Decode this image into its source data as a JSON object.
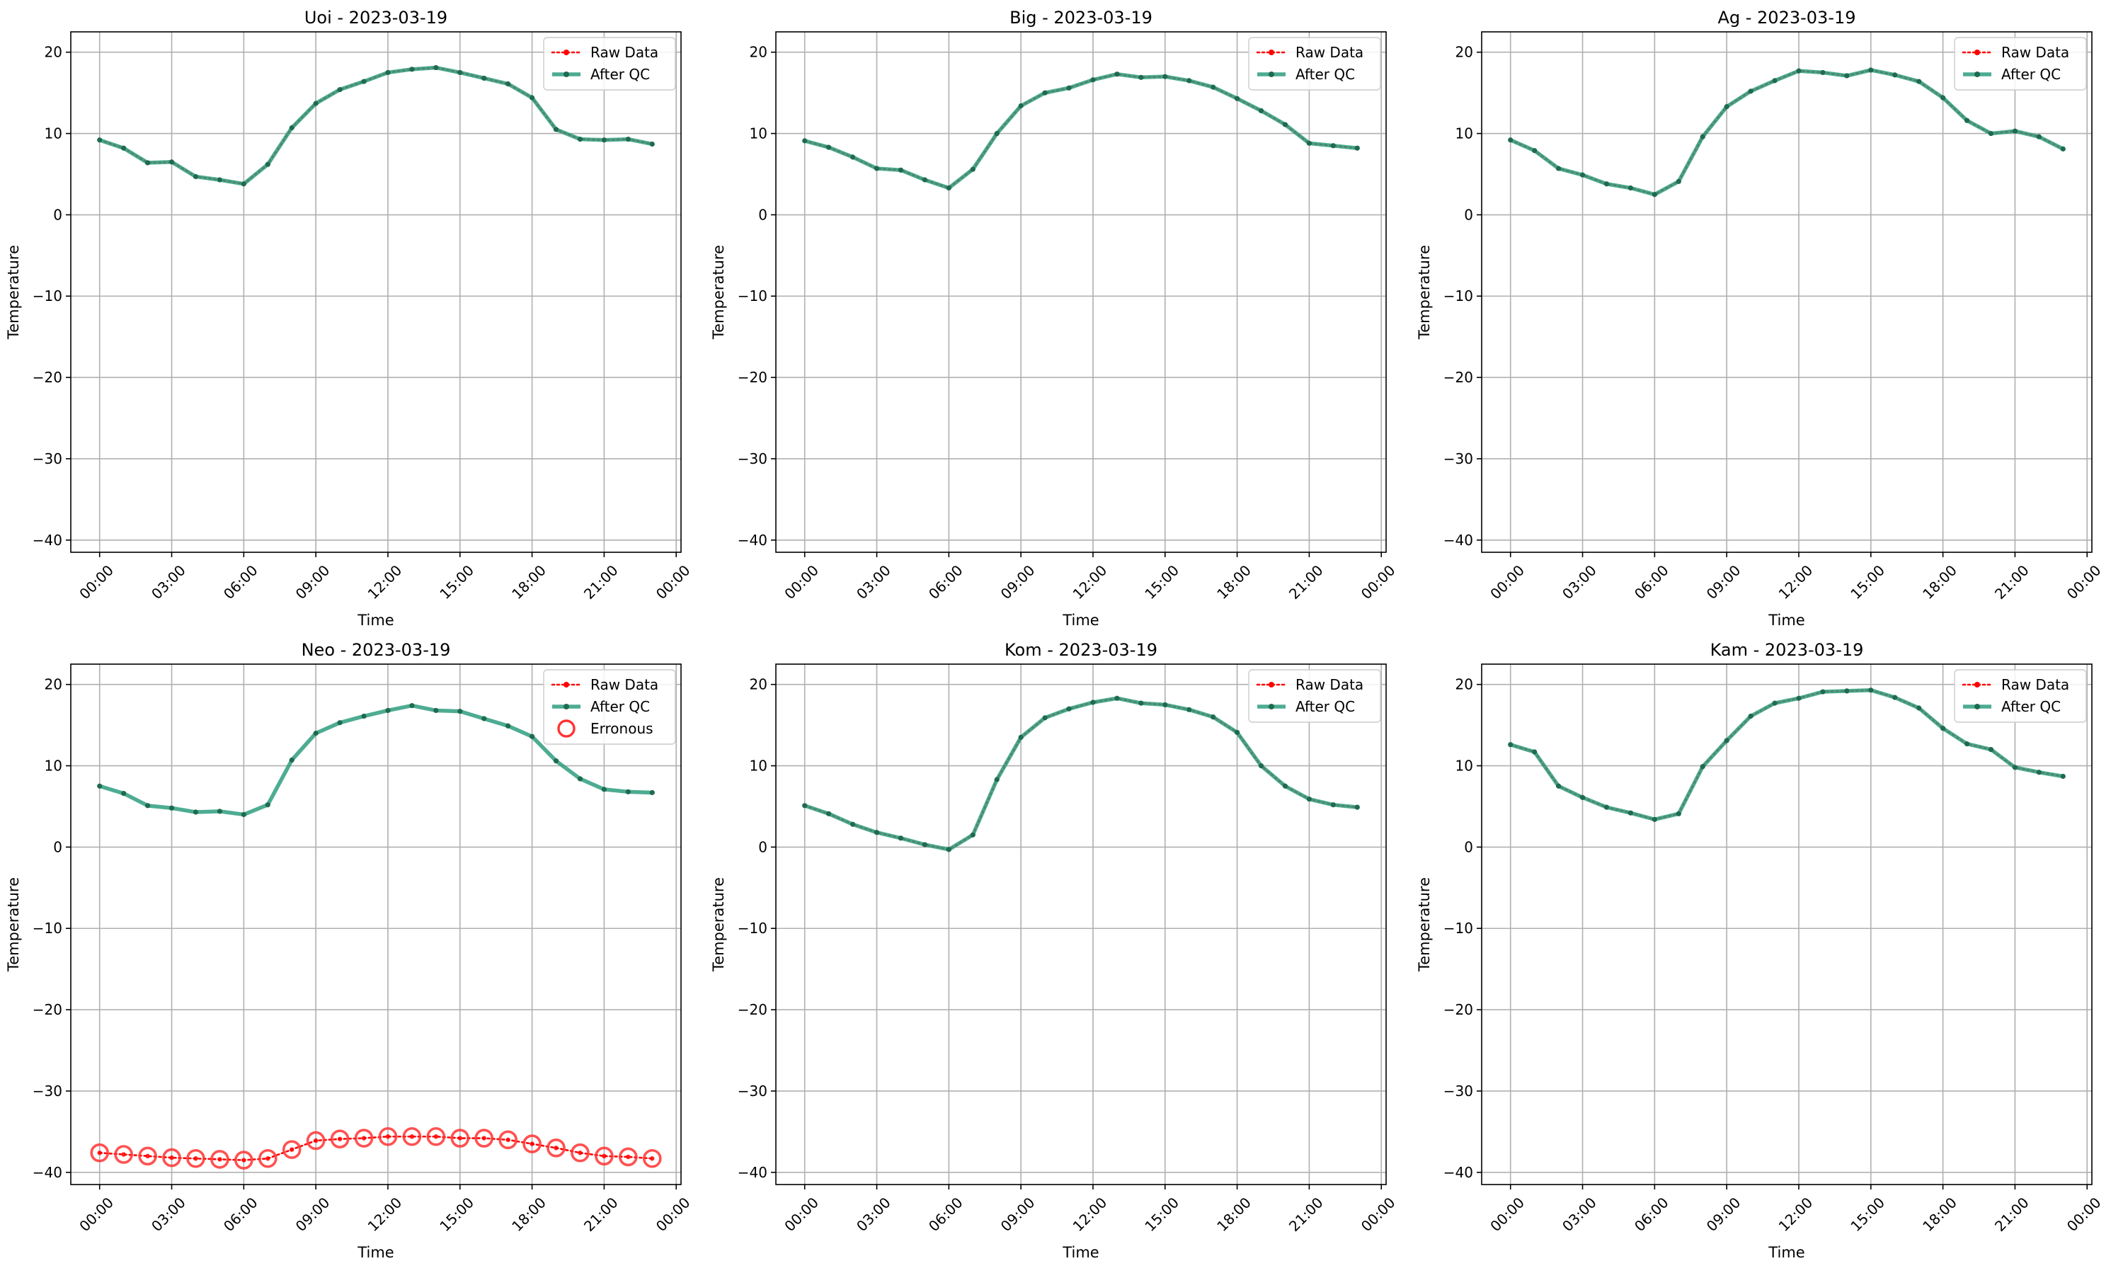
{
  "colors": {
    "raw": "#ff0000",
    "after_qc": "#2e9e7f",
    "after_qc_marker": "#1f6b4f",
    "erroneous": "#ff3333",
    "grid": "#b0b0b0",
    "axis": "#000000"
  },
  "legend_labels": {
    "raw": "Raw Data",
    "after_qc": "After QC",
    "erroneous": "Erronous"
  },
  "chart_data": [
    {
      "type": "line",
      "title": "Uoi - 2023-03-19",
      "xlabel": "Time",
      "ylabel": "Temperature",
      "xlim": [
        -1.2,
        24.2
      ],
      "ylim": [
        -41.5,
        22.5
      ],
      "x_ticks": [
        0,
        3,
        6,
        9,
        12,
        15,
        18,
        21,
        24
      ],
      "x_tick_labels": [
        "00:00",
        "03:00",
        "06:00",
        "09:00",
        "12:00",
        "15:00",
        "18:00",
        "21:00",
        "00:00"
      ],
      "y_ticks": [
        -40,
        -30,
        -20,
        -10,
        0,
        10,
        20
      ],
      "y_tick_labels": [
        "−40",
        "−30",
        "−20",
        "−10",
        "0",
        "10",
        "20"
      ],
      "grid": true,
      "legend": "top-right",
      "x": [
        0,
        1,
        2,
        3,
        4,
        5,
        6,
        7,
        8,
        9,
        10,
        11,
        12,
        13,
        14,
        15,
        16,
        17,
        18,
        19,
        20,
        21,
        22,
        23
      ],
      "series": [
        {
          "name": "Raw Data",
          "values": [
            9.2,
            8.2,
            6.4,
            6.5,
            4.7,
            4.3,
            3.8,
            6.2,
            10.7,
            13.7,
            15.4,
            16.4,
            17.5,
            17.9,
            18.1,
            17.5,
            16.8,
            16.1,
            14.4,
            10.5,
            9.3,
            9.2,
            9.3,
            8.7
          ]
        },
        {
          "name": "After QC",
          "values": [
            9.2,
            8.2,
            6.4,
            6.5,
            4.7,
            4.3,
            3.8,
            6.2,
            10.7,
            13.7,
            15.4,
            16.4,
            17.5,
            17.9,
            18.1,
            17.5,
            16.8,
            16.1,
            14.4,
            10.5,
            9.3,
            9.2,
            9.3,
            8.7
          ]
        }
      ]
    },
    {
      "type": "line",
      "title": "Big - 2023-03-19",
      "xlabel": "Time",
      "ylabel": "Temperature",
      "xlim": [
        -1.2,
        24.2
      ],
      "ylim": [
        -41.5,
        22.5
      ],
      "x_ticks": [
        0,
        3,
        6,
        9,
        12,
        15,
        18,
        21,
        24
      ],
      "x_tick_labels": [
        "00:00",
        "03:00",
        "06:00",
        "09:00",
        "12:00",
        "15:00",
        "18:00",
        "21:00",
        "00:00"
      ],
      "y_ticks": [
        -40,
        -30,
        -20,
        -10,
        0,
        10,
        20
      ],
      "y_tick_labels": [
        "−40",
        "−30",
        "−20",
        "−10",
        "0",
        "10",
        "20"
      ],
      "grid": true,
      "legend": "top-right",
      "x": [
        0,
        1,
        2,
        3,
        4,
        5,
        6,
        7,
        8,
        9,
        10,
        11,
        12,
        13,
        14,
        15,
        16,
        17,
        18,
        19,
        20,
        21,
        22,
        23
      ],
      "series": [
        {
          "name": "Raw Data",
          "values": [
            9.1,
            8.3,
            7.1,
            5.7,
            5.5,
            4.3,
            3.3,
            5.6,
            10.0,
            13.4,
            15.0,
            15.6,
            16.6,
            17.3,
            16.9,
            17.0,
            16.5,
            15.7,
            14.3,
            12.8,
            11.1,
            8.8,
            8.5,
            8.2
          ]
        },
        {
          "name": "After QC",
          "values": [
            9.1,
            8.3,
            7.1,
            5.7,
            5.5,
            4.3,
            3.3,
            5.6,
            10.0,
            13.4,
            15.0,
            15.6,
            16.6,
            17.3,
            16.9,
            17.0,
            16.5,
            15.7,
            14.3,
            12.8,
            11.1,
            8.8,
            8.5,
            8.2
          ]
        }
      ]
    },
    {
      "type": "line",
      "title": "Ag - 2023-03-19",
      "xlabel": "Time",
      "ylabel": "Temperature",
      "xlim": [
        -1.2,
        24.2
      ],
      "ylim": [
        -41.5,
        22.5
      ],
      "x_ticks": [
        0,
        3,
        6,
        9,
        12,
        15,
        18,
        21,
        24
      ],
      "x_tick_labels": [
        "00:00",
        "03:00",
        "06:00",
        "09:00",
        "12:00",
        "15:00",
        "18:00",
        "21:00",
        "00:00"
      ],
      "y_ticks": [
        -40,
        -30,
        -20,
        -10,
        0,
        10,
        20
      ],
      "y_tick_labels": [
        "−40",
        "−30",
        "−20",
        "−10",
        "0",
        "10",
        "20"
      ],
      "grid": true,
      "legend": "top-right",
      "x": [
        0,
        1,
        2,
        3,
        4,
        5,
        6,
        7,
        8,
        9,
        10,
        11,
        12,
        13,
        14,
        15,
        16,
        17,
        18,
        19,
        20,
        21,
        22,
        23
      ],
      "series": [
        {
          "name": "Raw Data",
          "values": [
            9.2,
            7.9,
            5.7,
            4.9,
            3.8,
            3.3,
            2.5,
            4.1,
            9.6,
            13.3,
            15.2,
            16.5,
            17.7,
            17.5,
            17.1,
            17.8,
            17.2,
            16.4,
            14.4,
            11.6,
            10.0,
            10.3,
            9.6,
            8.1
          ]
        },
        {
          "name": "After QC",
          "values": [
            9.2,
            7.9,
            5.7,
            4.9,
            3.8,
            3.3,
            2.5,
            4.1,
            9.6,
            13.3,
            15.2,
            16.5,
            17.7,
            17.5,
            17.1,
            17.8,
            17.2,
            16.4,
            14.4,
            11.6,
            10.0,
            10.3,
            9.6,
            8.1
          ]
        }
      ]
    },
    {
      "type": "line",
      "title": "Neo - 2023-03-19",
      "xlabel": "Time",
      "ylabel": "Temperature",
      "xlim": [
        -1.2,
        24.2
      ],
      "ylim": [
        -41.5,
        22.5
      ],
      "x_ticks": [
        0,
        3,
        6,
        9,
        12,
        15,
        18,
        21,
        24
      ],
      "x_tick_labels": [
        "00:00",
        "03:00",
        "06:00",
        "09:00",
        "12:00",
        "15:00",
        "18:00",
        "21:00",
        "00:00"
      ],
      "y_ticks": [
        -40,
        -30,
        -20,
        -10,
        0,
        10,
        20
      ],
      "y_tick_labels": [
        "−40",
        "−30",
        "−20",
        "−10",
        "0",
        "10",
        "20"
      ],
      "grid": true,
      "legend": "top-right",
      "x": [
        0,
        1,
        2,
        3,
        4,
        5,
        6,
        7,
        8,
        9,
        10,
        11,
        12,
        13,
        14,
        15,
        16,
        17,
        18,
        19,
        20,
        21,
        22,
        23
      ],
      "series": [
        {
          "name": "Raw Data",
          "values": [
            -37.6,
            -37.8,
            -38.0,
            -38.2,
            -38.3,
            -38.4,
            -38.5,
            -38.3,
            -37.2,
            -36.1,
            -35.9,
            -35.8,
            -35.6,
            -35.6,
            -35.6,
            -35.8,
            -35.8,
            -36.0,
            -36.5,
            -37.0,
            -37.6,
            -38.0,
            -38.1,
            -38.3
          ]
        },
        {
          "name": "After QC",
          "values": [
            7.5,
            6.6,
            5.1,
            4.8,
            4.3,
            4.4,
            4.0,
            5.2,
            10.7,
            14.0,
            15.3,
            16.1,
            16.8,
            17.4,
            16.8,
            16.7,
            15.8,
            14.9,
            13.6,
            10.6,
            8.4,
            7.1,
            6.8,
            6.7
          ]
        },
        {
          "name": "Erronous",
          "values": [
            -37.6,
            -37.8,
            -38.0,
            -38.2,
            -38.3,
            -38.4,
            -38.5,
            -38.3,
            -37.2,
            -36.1,
            -35.9,
            -35.8,
            -35.6,
            -35.6,
            -35.6,
            -35.8,
            -35.8,
            -36.0,
            -36.5,
            -37.0,
            -37.6,
            -38.0,
            -38.1,
            -38.3
          ]
        }
      ]
    },
    {
      "type": "line",
      "title": "Kom - 2023-03-19",
      "xlabel": "Time",
      "ylabel": "Temperature",
      "xlim": [
        -1.2,
        24.2
      ],
      "ylim": [
        -41.5,
        22.5
      ],
      "x_ticks": [
        0,
        3,
        6,
        9,
        12,
        15,
        18,
        21,
        24
      ],
      "x_tick_labels": [
        "00:00",
        "03:00",
        "06:00",
        "09:00",
        "12:00",
        "15:00",
        "18:00",
        "21:00",
        "00:00"
      ],
      "y_ticks": [
        -40,
        -30,
        -20,
        -10,
        0,
        10,
        20
      ],
      "y_tick_labels": [
        "−40",
        "−30",
        "−20",
        "−10",
        "0",
        "10",
        "20"
      ],
      "grid": true,
      "legend": "top-right",
      "x": [
        0,
        1,
        2,
        3,
        4,
        5,
        6,
        7,
        8,
        9,
        10,
        11,
        12,
        13,
        14,
        15,
        16,
        17,
        18,
        19,
        20,
        21,
        22,
        23
      ],
      "series": [
        {
          "name": "Raw Data",
          "values": [
            5.1,
            4.1,
            2.8,
            1.8,
            1.1,
            0.3,
            -0.3,
            1.5,
            8.3,
            13.5,
            15.9,
            17.0,
            17.8,
            18.3,
            17.7,
            17.5,
            16.9,
            16.0,
            14.1,
            10.0,
            7.5,
            5.9,
            5.2,
            4.9
          ]
        },
        {
          "name": "After QC",
          "values": [
            5.1,
            4.1,
            2.8,
            1.8,
            1.1,
            0.3,
            -0.3,
            1.5,
            8.3,
            13.5,
            15.9,
            17.0,
            17.8,
            18.3,
            17.7,
            17.5,
            16.9,
            16.0,
            14.1,
            10.0,
            7.5,
            5.9,
            5.2,
            4.9
          ]
        }
      ]
    },
    {
      "type": "line",
      "title": "Kam - 2023-03-19",
      "xlabel": "Time",
      "ylabel": "Temperature",
      "xlim": [
        -1.2,
        24.2
      ],
      "ylim": [
        -41.5,
        22.5
      ],
      "x_ticks": [
        0,
        3,
        6,
        9,
        12,
        15,
        18,
        21,
        24
      ],
      "x_tick_labels": [
        "00:00",
        "03:00",
        "06:00",
        "09:00",
        "12:00",
        "15:00",
        "18:00",
        "21:00",
        "00:00"
      ],
      "y_ticks": [
        -40,
        -30,
        -20,
        -10,
        0,
        10,
        20
      ],
      "y_tick_labels": [
        "−40",
        "−30",
        "−20",
        "−10",
        "0",
        "10",
        "20"
      ],
      "grid": true,
      "legend": "top-right",
      "x": [
        0,
        1,
        2,
        3,
        4,
        5,
        6,
        7,
        8,
        9,
        10,
        11,
        12,
        13,
        14,
        15,
        16,
        17,
        18,
        19,
        20,
        21,
        22,
        23
      ],
      "series": [
        {
          "name": "Raw Data",
          "values": [
            12.6,
            11.7,
            7.5,
            6.1,
            4.9,
            4.2,
            3.4,
            4.1,
            9.9,
            13.1,
            16.1,
            17.7,
            18.3,
            19.1,
            19.2,
            19.3,
            18.4,
            17.1,
            14.6,
            12.7,
            12.0,
            9.8,
            9.2,
            8.7
          ]
        },
        {
          "name": "After QC",
          "values": [
            12.6,
            11.7,
            7.5,
            6.1,
            4.9,
            4.2,
            3.4,
            4.1,
            9.9,
            13.1,
            16.1,
            17.7,
            18.3,
            19.1,
            19.2,
            19.3,
            18.4,
            17.1,
            14.6,
            12.7,
            12.0,
            9.8,
            9.2,
            8.7
          ]
        }
      ]
    }
  ]
}
